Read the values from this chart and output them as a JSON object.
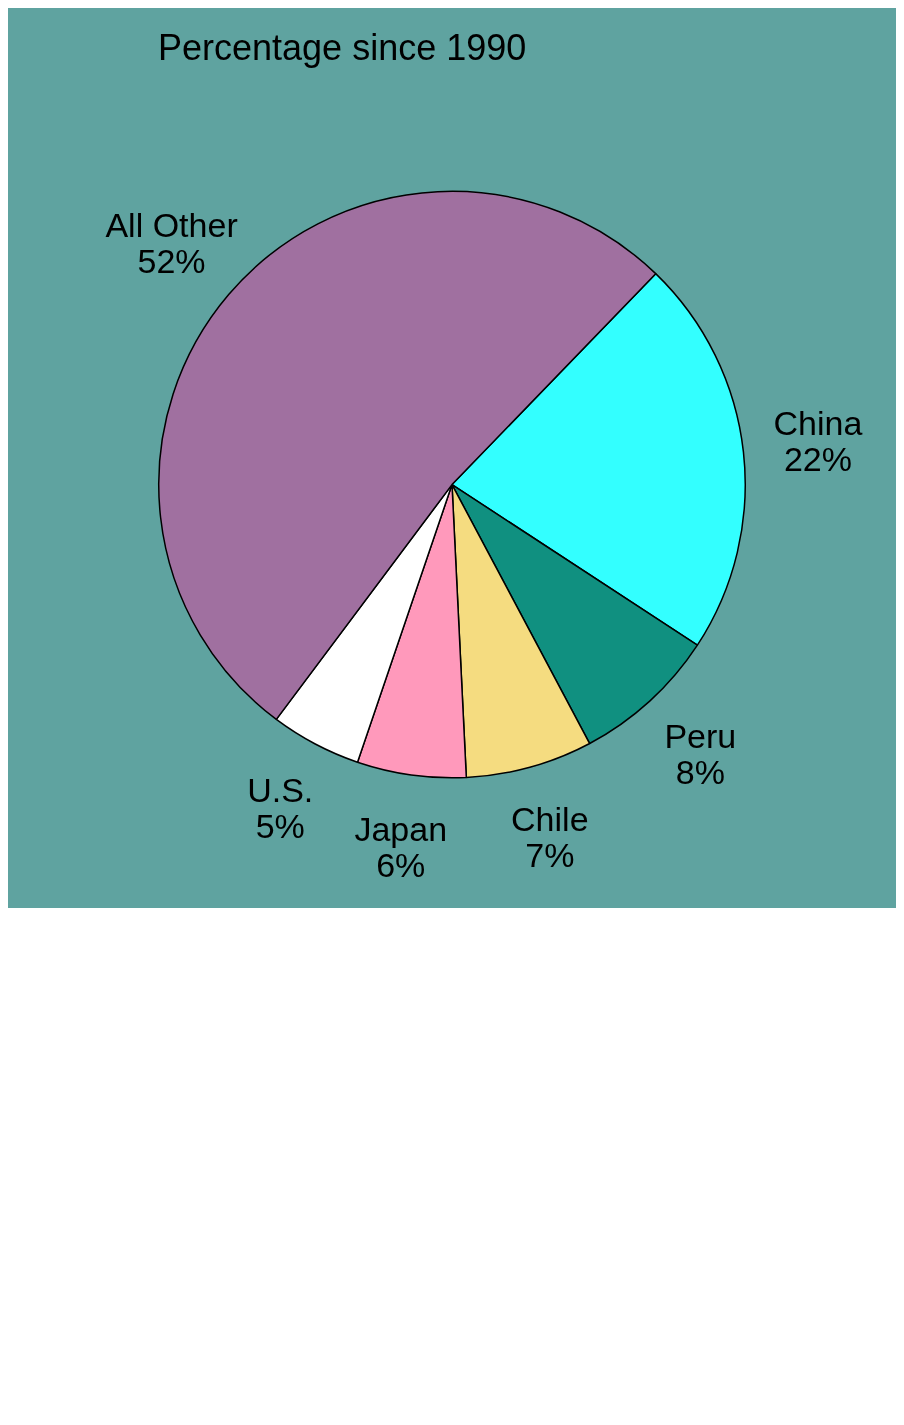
{
  "chart_data": {
    "type": "pie",
    "title": "Percentage since 1990",
    "categories": [
      "China",
      "Peru",
      "Chile",
      "Japan",
      "U.S.",
      "All Other"
    ],
    "values": [
      22,
      8,
      7,
      6,
      5,
      52
    ],
    "colors": [
      "#33ffff",
      "#109080",
      "#f5dc80",
      "#ff99bb",
      "#ffffff",
      "#a070a0"
    ],
    "value_labels": [
      "22%",
      "8%",
      "7%",
      "6%",
      "5%",
      "52%"
    ],
    "legend": false
  }
}
